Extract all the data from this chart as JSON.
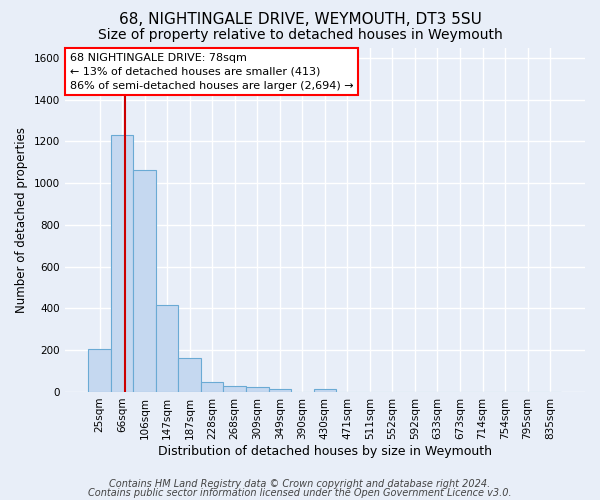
{
  "title1": "68, NIGHTINGALE DRIVE, WEYMOUTH, DT3 5SU",
  "title2": "Size of property relative to detached houses in Weymouth",
  "xlabel": "Distribution of detached houses by size in Weymouth",
  "ylabel": "Number of detached properties",
  "categories": [
    "25sqm",
    "66sqm",
    "106sqm",
    "147sqm",
    "187sqm",
    "228sqm",
    "268sqm",
    "309sqm",
    "349sqm",
    "390sqm",
    "430sqm",
    "471sqm",
    "511sqm",
    "552sqm",
    "592sqm",
    "633sqm",
    "673sqm",
    "714sqm",
    "754sqm",
    "795sqm",
    "835sqm"
  ],
  "values": [
    205,
    1230,
    1065,
    415,
    165,
    50,
    27,
    22,
    12,
    0,
    15,
    0,
    0,
    0,
    0,
    0,
    0,
    0,
    0,
    0,
    0
  ],
  "bar_color": "#c5d8f0",
  "bar_edge_color": "#6aaad4",
  "vline_x_data": 1.13,
  "vline_color": "#cc0000",
  "ylim": [
    0,
    1650
  ],
  "yticks": [
    0,
    200,
    400,
    600,
    800,
    1000,
    1200,
    1400,
    1600
  ],
  "annotation_box_text": "68 NIGHTINGALE DRIVE: 78sqm\n← 13% of detached houses are smaller (413)\n86% of semi-detached houses are larger (2,694) →",
  "footer1": "Contains HM Land Registry data © Crown copyright and database right 2024.",
  "footer2": "Contains public sector information licensed under the Open Government Licence v3.0.",
  "bg_color": "#e8eef8",
  "plot_bg_color": "#e8eef8",
  "grid_color": "#ffffff",
  "title1_fontsize": 11,
  "title2_fontsize": 10,
  "xlabel_fontsize": 9,
  "ylabel_fontsize": 8.5,
  "tick_fontsize": 7.5,
  "footer_fontsize": 7,
  "annot_fontsize": 8
}
